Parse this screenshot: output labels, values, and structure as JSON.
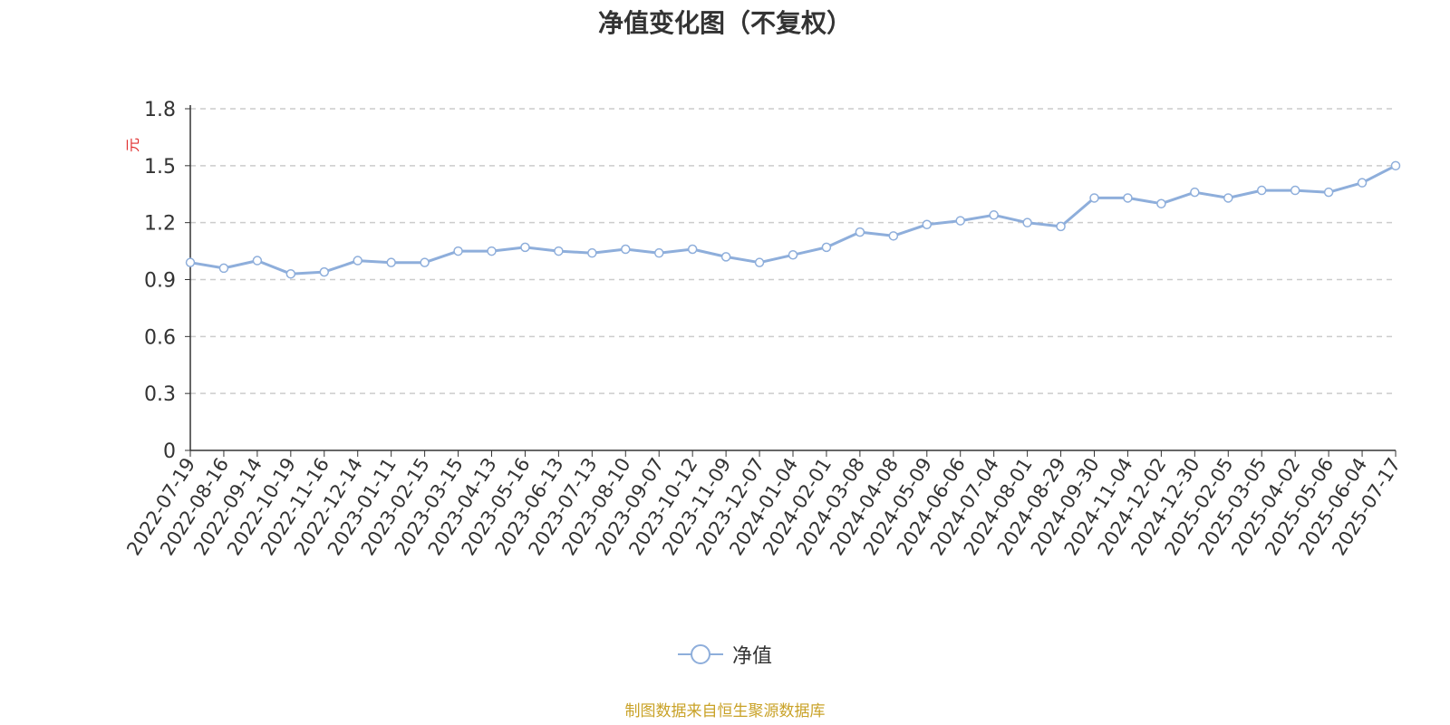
{
  "chart_data": {
    "type": "line",
    "title": "净值变化图（不复权）",
    "ylabel": "元",
    "ylim": [
      0,
      1.8
    ],
    "y_ticks": [
      "0",
      "0.3",
      "0.6",
      "0.9",
      "1.2",
      "1.5",
      "1.8"
    ],
    "x_tick_labels": [
      "2022-07-19",
      "2022-08-16",
      "2022-09-14",
      "2022-10-19",
      "2022-11-16",
      "2022-12-14",
      "2023-01-11",
      "2023-02-15",
      "2023-03-15",
      "2023-04-13",
      "2023-05-16",
      "2023-06-13",
      "2023-07-13",
      "2023-08-10",
      "2023-09-07",
      "2023-10-12",
      "2023-11-09",
      "2023-12-07",
      "2024-01-04",
      "2024-02-01",
      "2024-03-08",
      "2024-04-08",
      "2024-05-09",
      "2024-06-06",
      "2024-07-04",
      "2024-08-01",
      "2024-08-29",
      "2024-09-30",
      "2024-11-04",
      "2024-12-02",
      "2024-12-30",
      "2025-02-05",
      "2025-03-05",
      "2025-04-02",
      "2025-05-06",
      "2025-06-04",
      "2025-07-17"
    ],
    "grid": true,
    "legend_position": "bottom-center",
    "series": [
      {
        "name": "净值",
        "color": "#8eaedb",
        "x": [
          "2022-07-19",
          "2022-08-16",
          "2022-09-14",
          "2022-10-19",
          "2022-11-16",
          "2022-12-14",
          "2023-01-11",
          "2023-02-15",
          "2023-03-15",
          "2023-04-13",
          "2023-05-16",
          "2023-06-13",
          "2023-07-13",
          "2023-08-10",
          "2023-09-07",
          "2023-10-12",
          "2023-11-09",
          "2023-12-07",
          "2024-01-04",
          "2024-02-01",
          "2024-03-08",
          "2024-04-08",
          "2024-05-09",
          "2024-06-06",
          "2024-07-04",
          "2024-08-01",
          "2024-08-29",
          "2024-09-30",
          "2024-11-04",
          "2024-12-02",
          "2024-12-30",
          "2025-02-05",
          "2025-03-05",
          "2025-04-02",
          "2025-05-06",
          "2025-06-04",
          "2025-07-17"
        ],
        "values": [
          0.99,
          0.96,
          1.0,
          0.93,
          0.94,
          1.0,
          0.99,
          0.99,
          1.05,
          1.05,
          1.07,
          1.05,
          1.04,
          1.06,
          1.04,
          1.06,
          1.02,
          0.99,
          1.03,
          1.07,
          1.15,
          1.13,
          1.19,
          1.21,
          1.24,
          1.2,
          1.18,
          1.33,
          1.33,
          1.3,
          1.36,
          1.33,
          1.37,
          1.37,
          1.36,
          1.41,
          1.5
        ]
      }
    ]
  },
  "source_note": "制图数据来自恒生聚源数据库",
  "colors": {
    "line": "#8eaedb",
    "axis": "#333333",
    "grid": "#cccccc",
    "ylabel": "#e03030",
    "source_note": "#c9a227"
  }
}
